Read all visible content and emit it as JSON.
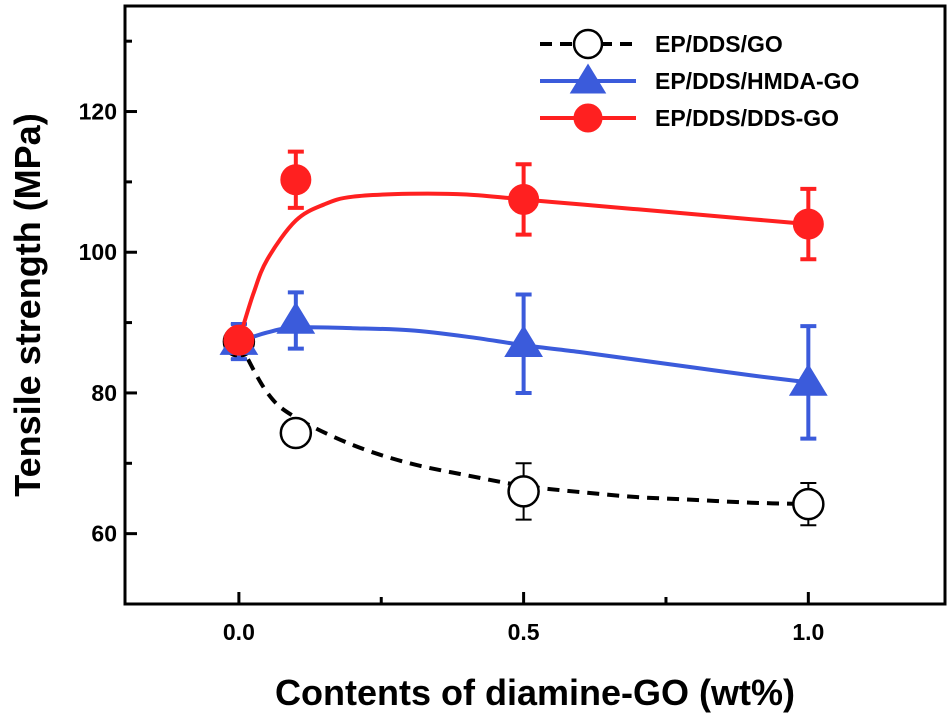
{
  "chart_data": {
    "type": "line",
    "title": "",
    "xlabel": "Contents of diamine-GO (wt%)",
    "ylabel": "Tensile strength (MPa)",
    "xlim": [
      -0.2,
      1.24
    ],
    "ylim": [
      50,
      135
    ],
    "x_ticks": [
      0.0,
      0.5,
      1.0
    ],
    "x_tick_labels": [
      "0.0",
      "0.5",
      "1.0"
    ],
    "y_ticks": [
      60,
      80,
      100,
      120
    ],
    "y_tick_labels": [
      "60",
      "80",
      "100",
      "120"
    ],
    "grid": false,
    "legend_position": "top-right",
    "series": [
      {
        "name": "EP/DDS/GO",
        "color": "#000000",
        "marker": "open-circle",
        "line": "dashed",
        "x": [
          0.0,
          0.1,
          0.5,
          1.0
        ],
        "y": [
          87.3,
          74.3,
          66.0,
          64.2
        ],
        "error": [
          2.5,
          0,
          4.0,
          3.0
        ],
        "fit_curve": [
          [
            0.0,
            87.3
          ],
          [
            0.05,
            80.0
          ],
          [
            0.1,
            76.5
          ],
          [
            0.2,
            72.6
          ],
          [
            0.3,
            70.0
          ],
          [
            0.4,
            68.3
          ],
          [
            0.5,
            66.8
          ],
          [
            0.6,
            65.9
          ],
          [
            0.7,
            65.2
          ],
          [
            0.8,
            64.8
          ],
          [
            0.9,
            64.4
          ],
          [
            1.0,
            64.2
          ]
        ]
      },
      {
        "name": "EP/DDS/HMDA-GO",
        "color": "#3b5bdb",
        "marker": "filled-triangle",
        "line": "solid",
        "x": [
          0.0,
          0.1,
          0.5,
          1.0
        ],
        "y": [
          87.3,
          90.3,
          87.0,
          81.5
        ],
        "error": [
          2.5,
          4.0,
          7.0,
          8.0
        ],
        "fit_curve": [
          [
            0.0,
            87.3
          ],
          [
            0.05,
            88.6
          ],
          [
            0.1,
            89.3
          ],
          [
            0.2,
            89.2
          ],
          [
            0.3,
            88.9
          ],
          [
            0.4,
            88.0
          ],
          [
            0.5,
            86.8
          ],
          [
            0.6,
            85.8
          ],
          [
            0.7,
            84.7
          ],
          [
            0.8,
            83.6
          ],
          [
            0.9,
            82.5
          ],
          [
            1.0,
            81.5
          ]
        ]
      },
      {
        "name": "EP/DDS/DDS-GO",
        "color": "#ff2020",
        "marker": "filled-circle",
        "line": "solid",
        "x": [
          0.0,
          0.1,
          0.5,
          1.0
        ],
        "y": [
          87.5,
          110.3,
          107.5,
          104.0
        ],
        "error": [
          1.5,
          4.0,
          5.0,
          5.0
        ],
        "fit_curve": [
          [
            0.0,
            87.5
          ],
          [
            0.025,
            94.0
          ],
          [
            0.05,
            99.0
          ],
          [
            0.1,
            104.5
          ],
          [
            0.15,
            106.8
          ],
          [
            0.2,
            107.9
          ],
          [
            0.3,
            108.3
          ],
          [
            0.4,
            108.2
          ],
          [
            0.5,
            107.5
          ],
          [
            0.6,
            106.8
          ],
          [
            0.7,
            106.1
          ],
          [
            0.8,
            105.4
          ],
          [
            0.9,
            104.7
          ],
          [
            1.0,
            104.0
          ]
        ]
      }
    ]
  }
}
